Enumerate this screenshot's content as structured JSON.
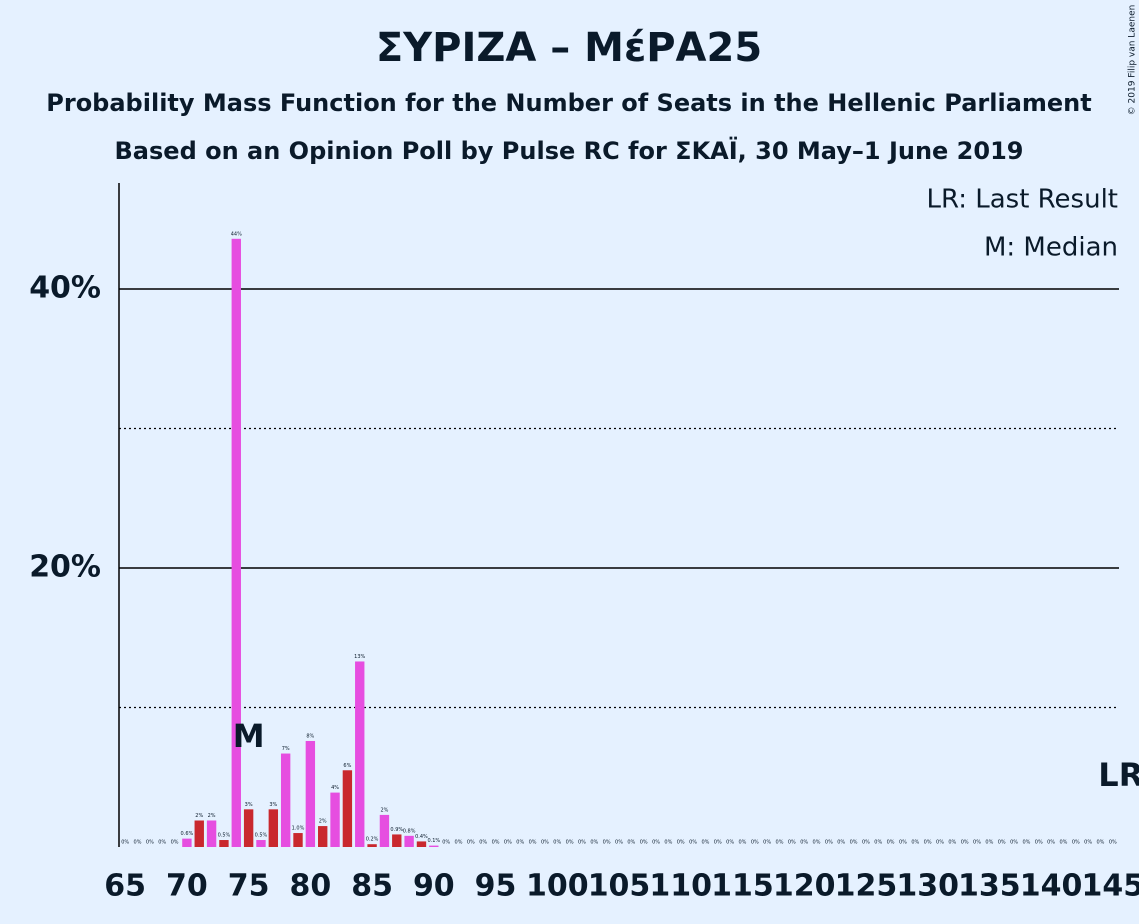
{
  "chart_data": {
    "type": "bar",
    "title": "ΣΥΡΙΖΑ – ΜέΡΑ25",
    "subtitle": "Probability Mass Function for the Number of Seats in the Hellenic Parliament",
    "subtitle2": "Based on an Opinion Poll by Pulse RC for ΣΚΑΪ, 30 May–1 June 2019",
    "copyright": "© 2019 Filip van Laenen",
    "legend": [
      "LR: Last Result",
      "M: Median"
    ],
    "median": 75,
    "median_label": "M",
    "last_result": 145,
    "last_result_label": "LR",
    "categories": [
      65,
      null,
      null,
      null,
      null,
      70,
      null,
      null,
      null,
      null,
      75,
      null,
      null,
      null,
      null,
      80,
      null,
      null,
      null,
      null,
      85,
      null,
      null,
      null,
      null,
      90,
      null,
      null,
      null,
      null,
      95,
      null,
      null,
      null,
      null,
      100,
      null,
      null,
      null,
      null,
      105,
      null,
      null,
      null,
      null,
      110,
      null,
      null,
      null,
      null,
      115,
      null,
      null,
      null,
      null,
      120,
      null,
      null,
      null,
      null,
      125,
      null,
      null,
      null,
      null,
      130,
      null,
      null,
      null,
      null,
      135,
      null,
      null,
      null,
      null,
      140,
      null,
      null,
      null,
      null,
      145
    ],
    "values": [
      0,
      0,
      0,
      0,
      0,
      0.6,
      1.9,
      1.9,
      0.5,
      43.6,
      2.7,
      0.5,
      2.7,
      6.7,
      1.0,
      7.6,
      1.5,
      3.9,
      5.5,
      13.3,
      0.2,
      2.3,
      0.9,
      0.8,
      0.4,
      0.1,
      0,
      0,
      0,
      0,
      0,
      0,
      0,
      0,
      0,
      0,
      0,
      0,
      0,
      0,
      0,
      0,
      0,
      0,
      0,
      0,
      0,
      0,
      0,
      0,
      0,
      0,
      0,
      0,
      0,
      0,
      0,
      0,
      0,
      0,
      0,
      0,
      0,
      0,
      0,
      0,
      0,
      0,
      0,
      0,
      0,
      0,
      0,
      0,
      0,
      0,
      0,
      0,
      0,
      0,
      0
    ],
    "value_labels": [
      "0%",
      "0%",
      "0%",
      "0%",
      "0%",
      "0.6%",
      "2%",
      "2%",
      "0.5%",
      "44%",
      "3%",
      "0.5%",
      "3%",
      "7%",
      "1.0%",
      "8%",
      "2%",
      "4%",
      "6%",
      "13%",
      "0.2%",
      "2%",
      "0.9%",
      "0.8%",
      "0.4%",
      "0.1%",
      "0%",
      "0%",
      "0%",
      "0%",
      "0%",
      "0%",
      "0%",
      "0%",
      "0%",
      "0%",
      "0%",
      "0%",
      "0%",
      "0%",
      "0%",
      "0%",
      "0%",
      "0%",
      "0%",
      "0%",
      "0%",
      "0%",
      "0%",
      "0%",
      "0%",
      "0%",
      "0%",
      "0%",
      "0%",
      "0%",
      "0%",
      "0%",
      "0%",
      "0%",
      "0%",
      "0%",
      "0%",
      "0%",
      "0%",
      "0%",
      "0%",
      "0%",
      "0%",
      "0%",
      "0%",
      "0%",
      "0%",
      "0%",
      "0%",
      "0%",
      "0%",
      "0%",
      "0%",
      "0%",
      "0%"
    ],
    "colors": [
      "#c9282e",
      "#e64ee0"
    ],
    "ylim": [
      0,
      47.6
    ],
    "yticks": [
      {
        "value": 20,
        "label": "20%"
      },
      {
        "value": 40,
        "label": "40%"
      }
    ],
    "minor_yticks": [
      10,
      30
    ],
    "grid": true
  }
}
